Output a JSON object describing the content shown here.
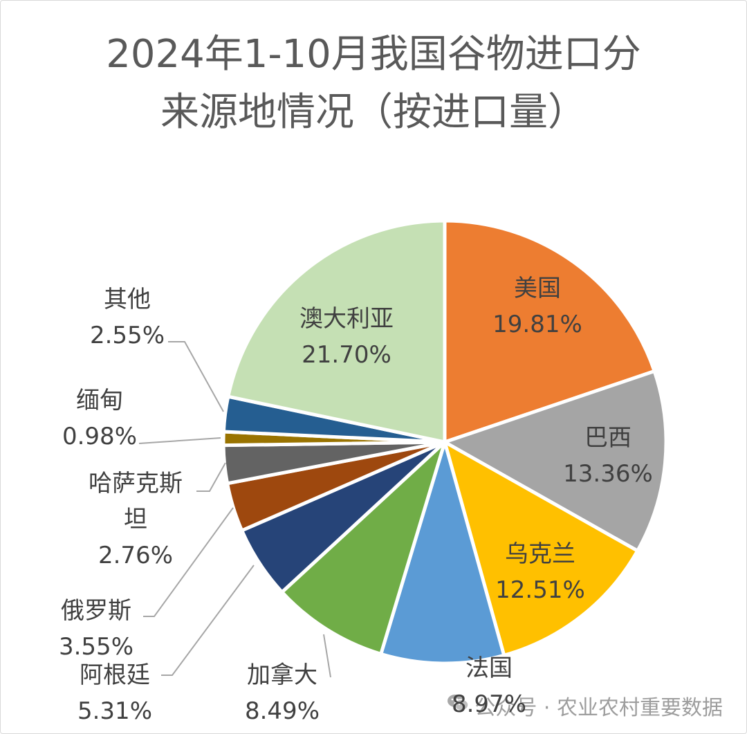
{
  "chart_data": {
    "type": "pie",
    "title": "2024年1-10月我国谷物进口分\n来源地情况（按进口量）",
    "categories": [
      "美国",
      "巴西",
      "乌克兰",
      "法国",
      "加拿大",
      "阿根廷",
      "俄罗斯",
      "哈萨克斯坦",
      "缅甸",
      "其他",
      "澳大利亚"
    ],
    "values": [
      19.81,
      13.36,
      12.51,
      8.97,
      8.49,
      5.31,
      3.55,
      2.76,
      0.98,
      2.55,
      21.7
    ],
    "data_labels": [
      "19.81%",
      "13.36%",
      "12.51%",
      "8.97%",
      "8.49%",
      "5.31%",
      "3.55%",
      "2.76%",
      "0.98%",
      "2.55%",
      "21.70%"
    ],
    "colors": [
      "#ED7D31",
      "#A5A5A5",
      "#FFC000",
      "#5B9BD5",
      "#70AD47",
      "#264478",
      "#9E480E",
      "#636363",
      "#997300",
      "#255E91",
      "#C5E0B4"
    ]
  },
  "watermark": {
    "text": "公众号 · 农业农村重要数据",
    "icon": "wechat-icon"
  }
}
